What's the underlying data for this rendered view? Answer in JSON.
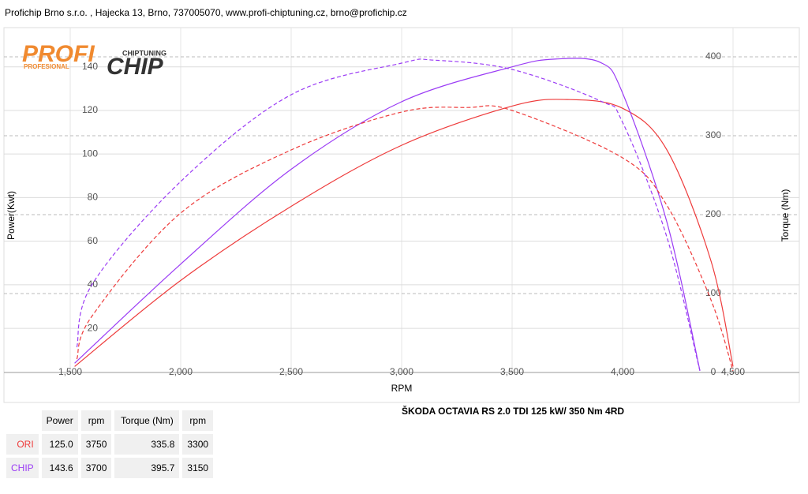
{
  "header": {
    "text": "Profichip Brno s.r.o. , Hajecka 13, Brno, 737005070, www.profi-chiptuning.cz, brno@profichip.cz"
  },
  "logo": {
    "profi": "PROFI",
    "chip": "CHIP",
    "tag1": "CHIPTUNING",
    "tag2": "PROFESIONAL"
  },
  "chart_data": {
    "type": "line",
    "title": "ŠKODA OCTAVIA RS 2.0 TDI 125 kW/ 350 Nm 4RD",
    "x_label": "RPM",
    "y_label": "Power(Kwt)",
    "y2_label": "Torque (Nm)",
    "xlim": [
      1200,
      4800
    ],
    "xticks": [
      {
        "value": 1500,
        "label": "1,500"
      },
      {
        "value": 2000,
        "label": "2,000"
      },
      {
        "value": 2500,
        "label": "2,500"
      },
      {
        "value": 3000,
        "label": "3,000"
      },
      {
        "value": 3500,
        "label": "3,500"
      },
      {
        "value": 4000,
        "label": "4,000"
      },
      {
        "value": 4500,
        "label": "4,500"
      }
    ],
    "ylim": [
      -14,
      158
    ],
    "yticks": [
      20,
      40,
      60,
      80,
      100,
      120,
      140
    ],
    "y2lim": [
      -38,
      437
    ],
    "y2ticks": [
      0,
      100,
      200,
      300,
      400
    ],
    "grid": true,
    "series": [
      {
        "name": "ORI",
        "color": "#ee3b3b",
        "dash": false,
        "x": [
          1520,
          2000,
          2500,
          3000,
          3500,
          3750,
          4000,
          4200,
          4400,
          4500
        ],
        "values": [
          2.5,
          42,
          76,
          104,
          122,
          125,
          121,
          102,
          51,
          2.5
        ]
      },
      {
        "name": "CHIP",
        "color": "#9b3cf5",
        "dash": false,
        "x": [
          1520,
          2000,
          2500,
          3000,
          3500,
          3700,
          3900,
          4000,
          4200,
          4350
        ],
        "values": [
          4,
          49.5,
          93,
          124,
          140,
          143.6,
          142,
          128,
          69,
          0.7
        ]
      },
      {
        "name": "ORI",
        "color": "#ee3b3b",
        "dash": true,
        "axis": "y2",
        "x": [
          1530,
          1600,
          2000,
          2500,
          3000,
          3300,
          3500,
          4000,
          4200,
          4400,
          4500
        ],
        "values": [
          17,
          72,
          202,
          282,
          330,
          335.8,
          332,
          272,
          212,
          92,
          2
        ]
      },
      {
        "name": "CHIP",
        "color": "#9b3cf5",
        "dash": true,
        "axis": "y2",
        "x": [
          1530,
          1600,
          2000,
          2500,
          3000,
          3150,
          3500,
          3900,
          4000,
          4200,
          4350
        ],
        "values": [
          32,
          112,
          242,
          352,
          392,
          395.7,
          384,
          344,
          317,
          172,
          2
        ]
      }
    ]
  },
  "table": {
    "header": [
      "Power",
      "rpm",
      "Torque (Nm)",
      "rpm"
    ],
    "rows": [
      [
        "ORI",
        "125.0",
        "3750",
        "335.8",
        "3300"
      ],
      [
        "CHIP",
        "143.6",
        "3700",
        "395.7",
        "3150"
      ]
    ]
  }
}
